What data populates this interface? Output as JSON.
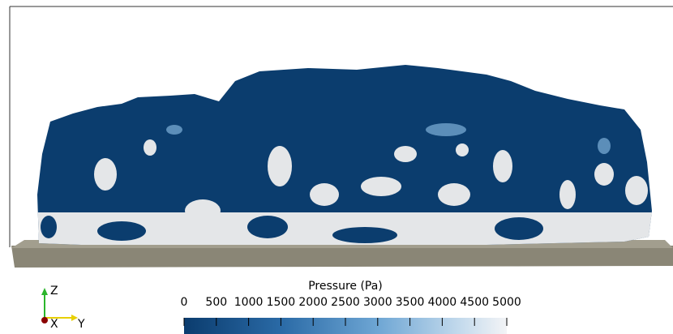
{
  "colorbar": {
    "title": "Pressure (Pa)",
    "range": [
      0,
      5000
    ],
    "ticks": [
      0,
      500,
      1000,
      1500,
      2000,
      2500,
      3000,
      3500,
      4000,
      4500,
      5000
    ]
  },
  "axes": {
    "z": "Z",
    "x": "X",
    "y": "Y"
  }
}
